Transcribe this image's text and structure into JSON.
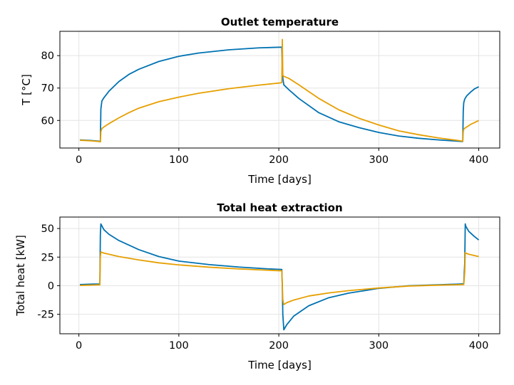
{
  "chart_data": [
    {
      "type": "line",
      "title": "Outlet temperature",
      "xlabel": "Time [days]",
      "ylabel": "T [°C]",
      "xlim": [
        -19,
        421
      ],
      "ylim": [
        51.5,
        87.5
      ],
      "xticks": [
        0,
        100,
        200,
        300,
        400
      ],
      "xtick_labels": [
        "0",
        "100",
        "200",
        "300",
        "400"
      ],
      "yticks": [
        60,
        70,
        80
      ],
      "ytick_labels": [
        "60",
        "70",
        "80"
      ],
      "grid": true,
      "series": [
        {
          "color": "#0072b2",
          "x": [
            1,
            5,
            10,
            15,
            20,
            21.5,
            22,
            23,
            25,
            30,
            40,
            50,
            60,
            80,
            100,
            120,
            150,
            180,
            202,
            203,
            203.5,
            204,
            205,
            210,
            220,
            240,
            260,
            280,
            300,
            320,
            340,
            360,
            380,
            384,
            384.5,
            385,
            386,
            388,
            392,
            396,
            400
          ],
          "y": [
            54.0,
            53.95,
            53.85,
            53.75,
            53.6,
            53.5,
            63.5,
            66.0,
            67.0,
            69.0,
            72.0,
            74.2,
            75.8,
            78.2,
            79.8,
            80.8,
            81.8,
            82.4,
            82.6,
            82.6,
            76.0,
            73.0,
            71.0,
            69.5,
            66.8,
            62.4,
            59.6,
            57.8,
            56.3,
            55.2,
            54.5,
            54.0,
            53.6,
            53.5,
            63.0,
            65.5,
            66.6,
            67.6,
            68.8,
            69.8,
            70.4
          ]
        },
        {
          "color": "#e69f00",
          "x": [
            1,
            5,
            10,
            15,
            20,
            21.5,
            22,
            23,
            25,
            30,
            40,
            50,
            60,
            80,
            100,
            120,
            150,
            180,
            202,
            203,
            203.5,
            204,
            205,
            210,
            220,
            240,
            260,
            280,
            300,
            320,
            340,
            360,
            380,
            384,
            384.5,
            385,
            386,
            388,
            392,
            396,
            400
          ],
          "y": [
            53.9,
            53.85,
            53.75,
            53.65,
            53.5,
            53.4,
            56.5,
            57.5,
            58.0,
            59.0,
            60.8,
            62.4,
            63.8,
            65.8,
            67.2,
            68.4,
            69.8,
            70.9,
            71.6,
            71.7,
            85.0,
            74.0,
            73.6,
            73.0,
            71.0,
            66.8,
            63.3,
            60.7,
            58.6,
            56.8,
            55.6,
            54.6,
            53.8,
            53.6,
            56.5,
            57.3,
            57.6,
            58.0,
            58.8,
            59.4,
            60.0
          ]
        }
      ]
    },
    {
      "type": "line",
      "title": "Total heat extraction",
      "xlabel": "Time [days]",
      "ylabel": "Total heat [kW]",
      "xlim": [
        -19,
        421
      ],
      "ylim": [
        -42,
        60
      ],
      "xticks": [
        0,
        100,
        200,
        300,
        400
      ],
      "xtick_labels": [
        "0",
        "100",
        "200",
        "300",
        "400"
      ],
      "yticks": [
        -25,
        0,
        25,
        50
      ],
      "ytick_labels": [
        "-25",
        "0",
        "25",
        "50"
      ],
      "grid": true,
      "series": [
        {
          "color": "#0072b2",
          "x": [
            1,
            10,
            21,
            21.5,
            22,
            25,
            30,
            40,
            60,
            80,
            100,
            130,
            160,
            190,
            203,
            203.5,
            204,
            205,
            208,
            215,
            230,
            250,
            270,
            300,
            330,
            360,
            385,
            386,
            386.5,
            387,
            390,
            395,
            400
          ],
          "y": [
            1.0,
            1.3,
            1.5,
            45.0,
            54.0,
            49.0,
            45.0,
            39.5,
            31.5,
            25.5,
            21.5,
            18.5,
            16.3,
            14.7,
            14.2,
            0.0,
            -25.0,
            -38.5,
            -34.0,
            -26.5,
            -17.5,
            -10.5,
            -6.5,
            -2.3,
            0.0,
            0.8,
            1.6,
            20.0,
            54.0,
            52.0,
            47.5,
            43.5,
            40.0
          ]
        },
        {
          "color": "#e69f00",
          "x": [
            1,
            10,
            21,
            21.5,
            22,
            25,
            30,
            40,
            60,
            80,
            100,
            130,
            160,
            190,
            203,
            203.5,
            204,
            205,
            208,
            215,
            230,
            250,
            270,
            300,
            330,
            360,
            385,
            386,
            386.5,
            387,
            390,
            395,
            400
          ],
          "y": [
            0.2,
            0.5,
            0.8,
            25.0,
            29.5,
            28.5,
            27.5,
            25.5,
            22.5,
            20.0,
            18.2,
            16.2,
            14.7,
            13.5,
            13.0,
            0.0,
            -12.0,
            -16.5,
            -14.8,
            -12.5,
            -9.0,
            -6.3,
            -4.3,
            -2.0,
            -0.3,
            0.5,
            1.0,
            12.0,
            29.0,
            28.5,
            27.5,
            26.5,
            25.5
          ]
        }
      ]
    }
  ]
}
